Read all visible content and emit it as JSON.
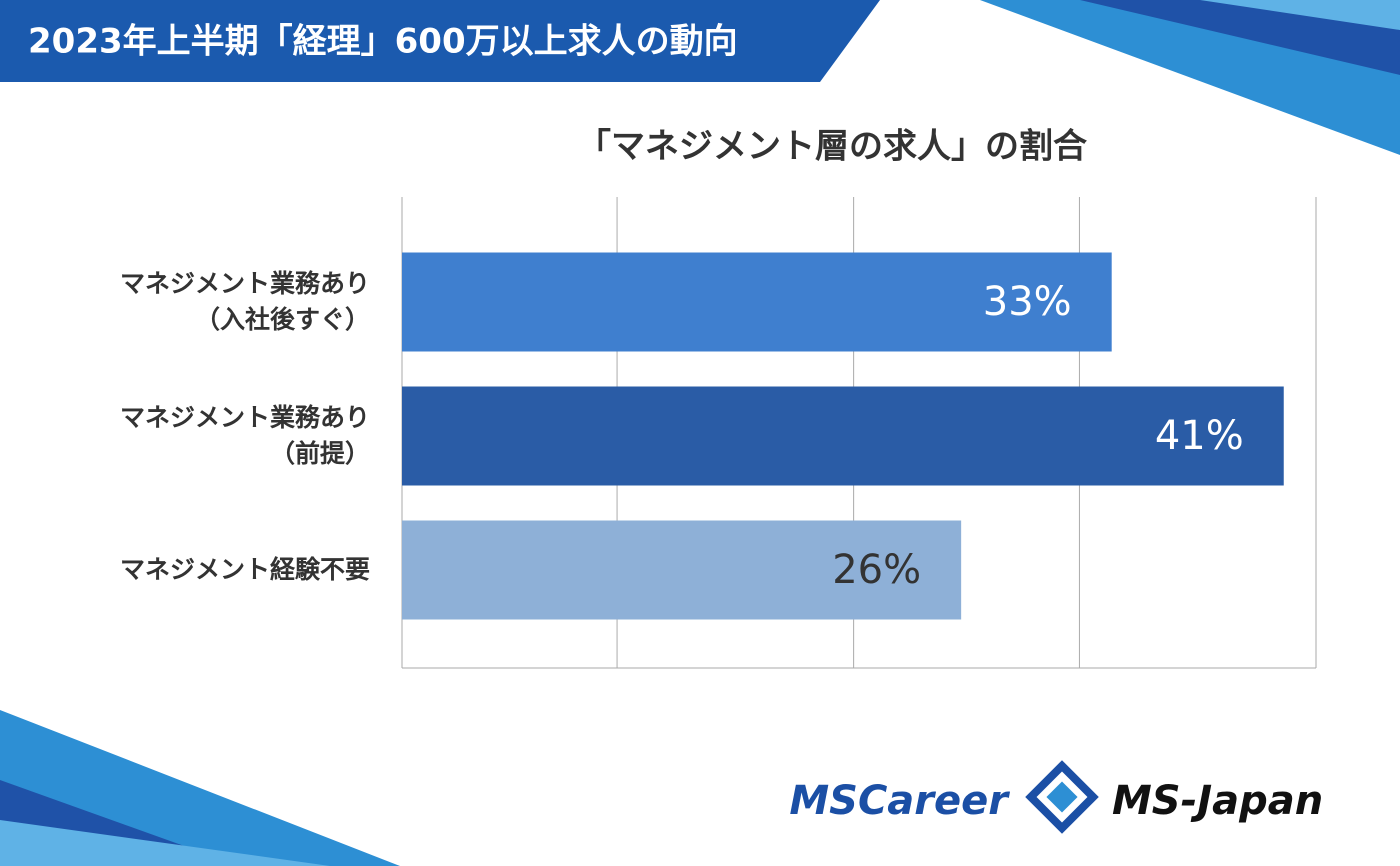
{
  "banner": "2023年上半期「経理」600万以上求人の動向",
  "logos": [
    "MSCareer",
    "MS-Japan"
  ],
  "chart_data": {
    "type": "hbar",
    "title": "「マネジメント層の求人」の割合",
    "categories": [
      "マネジメント業務あり\n（入社後すぐ）",
      "マネジメント業務あり\n（前提）",
      "マネジメント経験不要"
    ],
    "values": [
      33,
      41,
      26
    ],
    "value_labels": [
      "33%",
      "41%",
      "26%"
    ],
    "colors": [
      "#3f7fcf",
      "#2a5ca6",
      "#8eb0d7"
    ],
    "label_colors": [
      "#ffffff",
      "#ffffff",
      "#333333"
    ],
    "xlim": [
      0,
      42.5
    ],
    "xticks": [
      0,
      10,
      21,
      31.5,
      42.5
    ],
    "grid": true
  }
}
